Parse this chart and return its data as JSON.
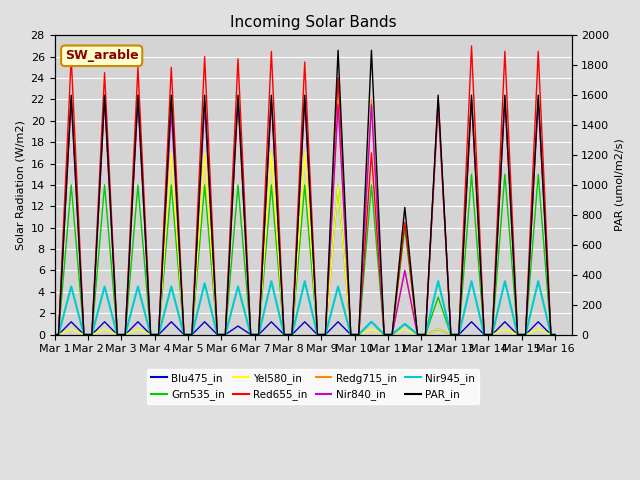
{
  "title": "Incoming Solar Bands",
  "ylabel_left": "Solar Radiation (W/m2)",
  "ylabel_right": "PAR (umol/m2/s)",
  "ylim_left": [
    0,
    28
  ],
  "ylim_right": [
    0,
    2000
  ],
  "background_color": "#e0e0e0",
  "plot_bg_color": "#d4d4d4",
  "annotation_text": "SW_arable",
  "annotation_color": "#8b0000",
  "annotation_bg": "#ffffcc",
  "annotation_border": "#cc8800",
  "series": [
    {
      "name": "Blu475_in",
      "color": "#0000cc",
      "lw": 1.0,
      "secondary": false
    },
    {
      "name": "Grn535_in",
      "color": "#00cc00",
      "lw": 1.0,
      "secondary": false
    },
    {
      "name": "Yel580_in",
      "color": "#ffff00",
      "lw": 1.0,
      "secondary": false
    },
    {
      "name": "Red655_in",
      "color": "#ff0000",
      "lw": 1.0,
      "secondary": false
    },
    {
      "name": "Redg715_in",
      "color": "#ff8800",
      "lw": 1.0,
      "secondary": false
    },
    {
      "name": "Nir840_in",
      "color": "#cc00cc",
      "lw": 1.0,
      "secondary": false
    },
    {
      "name": "Nir945_in",
      "color": "#00cccc",
      "lw": 1.5,
      "secondary": false
    },
    {
      "name": "PAR_in",
      "color": "#000000",
      "lw": 1.0,
      "secondary": true
    }
  ],
  "x_tick_labels": [
    "Mar 1",
    "Mar 2",
    "Mar 3",
    "Mar 4",
    "Mar 5",
    "Mar 6",
    "Mar 7",
    "Mar 8",
    "Mar 9",
    "Mar 10",
    "Mar 11",
    "Mar 12",
    "Mar 13",
    "Mar 14",
    "Mar 15",
    "Mar 16",
    ""
  ],
  "n_days": 15,
  "day_peaks": {
    "Blu475_in": [
      1.2,
      1.2,
      1.2,
      1.2,
      1.2,
      0.8,
      1.2,
      1.2,
      1.2,
      1.2,
      1.0,
      0.5,
      1.2,
      1.2,
      1.2
    ],
    "Grn535_in": [
      14,
      14,
      14,
      14,
      14,
      14,
      14,
      14,
      14,
      14,
      10,
      3.5,
      15,
      15,
      15
    ],
    "Yel580_in": [
      0.5,
      0.5,
      0.5,
      17,
      17,
      22,
      17,
      17,
      14,
      0.5,
      0.5,
      0.5,
      22,
      0.5,
      0.5
    ],
    "Red655_in": [
      26,
      24.5,
      25,
      25,
      26,
      25.8,
      26.5,
      25.5,
      24,
      17,
      10.5,
      21.5,
      27,
      26.5,
      26.5
    ],
    "Redg715_in": [
      22,
      22,
      22,
      22,
      22,
      22,
      22,
      22,
      22,
      22,
      6,
      22,
      22,
      22,
      22
    ],
    "Nir840_in": [
      22,
      22,
      22,
      21,
      21.5,
      22,
      22,
      22,
      21.5,
      21.5,
      6,
      22,
      22,
      22,
      22
    ],
    "Nir945_in": [
      4.5,
      4.5,
      4.5,
      4.5,
      4.8,
      4.5,
      5.0,
      5.0,
      4.5,
      1.2,
      1.0,
      5.0,
      5.0,
      5.0,
      5.0
    ],
    "PAR_in": [
      1600,
      1600,
      1600,
      1600,
      1600,
      1600,
      1600,
      1600,
      1900,
      1900,
      850,
      1600,
      1600,
      1600,
      1600
    ]
  }
}
